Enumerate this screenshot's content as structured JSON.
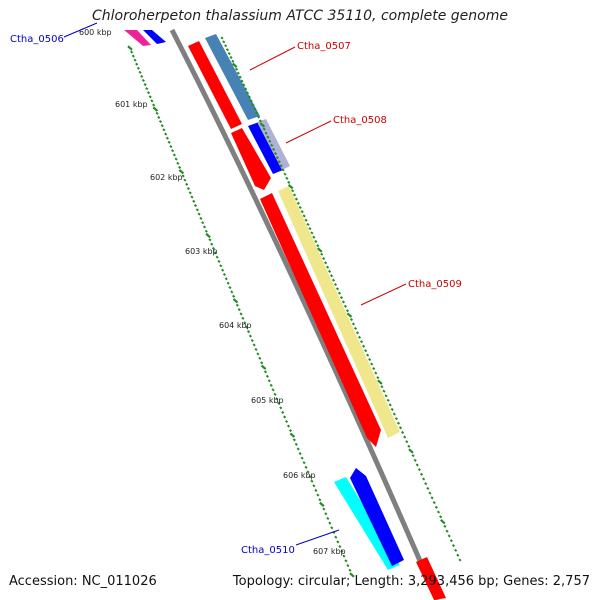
{
  "title": "Chloroherpeton thalassium ATCC 35110, complete genome",
  "accession": "Accession: NC_011026",
  "topology": "Topology: circular; Length: 3,293,456 bp; Genes: 2,757",
  "ticks": [
    "600 kbp",
    "601 kbp",
    "602 kbp",
    "603 kbp",
    "604 kbp",
    "605 kbp",
    "606 kbp",
    "607 kbp"
  ],
  "genes": [
    {
      "label": "Ctha_0506",
      "strand": "reverse"
    },
    {
      "label": "Ctha_0507",
      "strand": "forward"
    },
    {
      "label": "Ctha_0508",
      "strand": "forward"
    },
    {
      "label": "Ctha_0509",
      "strand": "forward"
    },
    {
      "label": "Ctha_0510",
      "strand": "reverse"
    }
  ],
  "colors": {
    "cds": "#ff0000",
    "forward_label": "#cc0000",
    "reverse_label": "#0000cc",
    "backbone": "#808080",
    "tick": "#228b22",
    "gene_0506_cog": "#ee2299",
    "gene_0507_cog": "#4682b4",
    "gene_0508_cog": "#0000ff",
    "gene_0509_cog": "#f0e68c",
    "gene_0510_cog": "#00ffff",
    "gene_0510_cds": "#0000ff"
  }
}
